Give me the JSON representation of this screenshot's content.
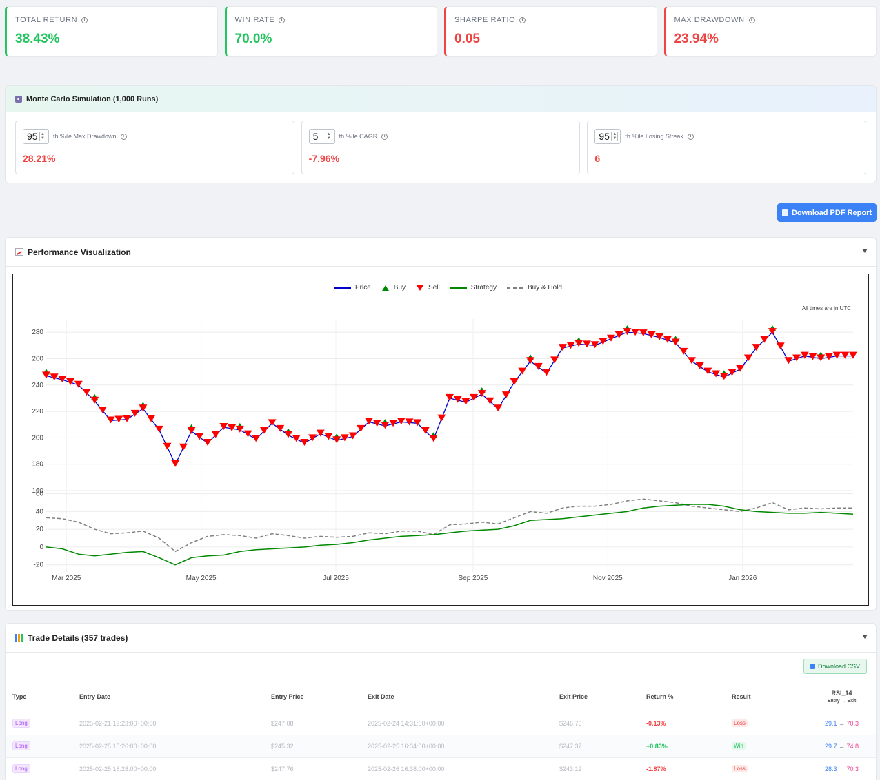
{
  "kpis": [
    {
      "label": "TOTAL RETURN",
      "value": "38.43%",
      "tone": "green"
    },
    {
      "label": "WIN RATE",
      "value": "70.0%",
      "tone": "green"
    },
    {
      "label": "SHARPE RATIO",
      "value": "0.05",
      "tone": "red"
    },
    {
      "label": "MAX DRAWDOWN",
      "value": "23.94%",
      "tone": "red"
    }
  ],
  "monte_carlo": {
    "title": "Monte Carlo Simulation (1,000 Runs)",
    "cards": [
      {
        "percentile": "95",
        "label": "th %ile Max Drawdown",
        "value": "28.21%"
      },
      {
        "percentile": "5",
        "label": "th %ile CAGR",
        "value": "-7.96%"
      },
      {
        "percentile": "95",
        "label": "th %ile Losing Streak",
        "value": "6"
      }
    ]
  },
  "download_pdf_label": "Download PDF Report",
  "performance": {
    "title": "Performance Visualization",
    "utc_note": "All times are in UTC",
    "legend": [
      "Price",
      "Buy",
      "Sell",
      "Strategy",
      "Buy & Hold"
    ]
  },
  "chart_data": {
    "type": "line",
    "x_ticks": [
      "Mar 2025",
      "May 2025",
      "Jul 2025",
      "Sep 2025",
      "Nov 2025",
      "Jan 2026"
    ],
    "price_axis": {
      "ticks": [
        160,
        180,
        200,
        220,
        240,
        260,
        280
      ],
      "ylim": [
        160,
        290
      ]
    },
    "equity_axis": {
      "ticks": [
        -20,
        0,
        20,
        40,
        60
      ],
      "ylim": [
        -28,
        62
      ]
    },
    "colors": {
      "price": "#0000cc",
      "buy": "#008800",
      "sell": "#ff0000",
      "strategy": "#008800",
      "buy_hold": "#808080"
    },
    "series": [
      {
        "name": "Price",
        "x": [
          0,
          2,
          4,
          6,
          8,
          10,
          12,
          14,
          16,
          18,
          20,
          22,
          24,
          26,
          28,
          30,
          32,
          34,
          36,
          38,
          40,
          42,
          44,
          46,
          48,
          50,
          52,
          54,
          56,
          58,
          60,
          62,
          64,
          66,
          68,
          70,
          72,
          74,
          76,
          78,
          80,
          82,
          84,
          86,
          88,
          90,
          92,
          94,
          96,
          98,
          100
        ],
        "values": [
          247,
          244,
          240,
          228,
          213,
          214,
          222,
          206,
          180,
          205,
          196,
          208,
          206,
          199,
          211,
          202,
          196,
          203,
          198,
          201,
          212,
          209,
          212,
          211,
          199,
          230,
          227,
          233,
          222,
          242,
          258,
          249,
          268,
          271,
          270,
          275,
          280,
          279,
          276,
          272,
          258,
          250,
          246,
          252,
          268,
          280,
          258,
          262,
          260,
          262,
          262
        ]
      },
      {
        "name": "Strategy",
        "x": [
          0,
          2,
          4,
          6,
          8,
          10,
          12,
          14,
          16,
          18,
          20,
          22,
          24,
          26,
          28,
          30,
          32,
          34,
          36,
          38,
          40,
          42,
          44,
          46,
          48,
          50,
          52,
          54,
          56,
          58,
          60,
          62,
          64,
          66,
          68,
          70,
          72,
          74,
          76,
          78,
          80,
          82,
          84,
          86,
          88,
          90,
          92,
          94,
          96,
          98,
          100
        ],
        "values": [
          0,
          -2,
          -8,
          -10,
          -8,
          -6,
          -5,
          -12,
          -20,
          -12,
          -10,
          -9,
          -5,
          -3,
          -2,
          -1,
          0,
          2,
          3,
          5,
          8,
          10,
          12,
          13,
          14,
          16,
          18,
          19,
          20,
          24,
          30,
          31,
          32,
          34,
          36,
          38,
          40,
          44,
          46,
          47,
          48,
          48,
          46,
          42,
          40,
          39,
          38,
          38,
          39,
          38,
          37
        ]
      },
      {
        "name": "Buy & Hold",
        "x": [
          0,
          2,
          4,
          6,
          8,
          10,
          12,
          14,
          16,
          18,
          20,
          22,
          24,
          26,
          28,
          30,
          32,
          34,
          36,
          38,
          40,
          42,
          44,
          46,
          48,
          50,
          52,
          54,
          56,
          58,
          60,
          62,
          64,
          66,
          68,
          70,
          72,
          74,
          76,
          78,
          80,
          82,
          84,
          86,
          88,
          90,
          92,
          94,
          96,
          98,
          100
        ],
        "values": [
          33,
          32,
          28,
          20,
          15,
          16,
          18,
          10,
          -5,
          5,
          12,
          14,
          13,
          10,
          15,
          13,
          10,
          12,
          11,
          12,
          16,
          15,
          18,
          18,
          14,
          25,
          26,
          28,
          26,
          33,
          40,
          38,
          44,
          46,
          46,
          48,
          52,
          54,
          52,
          50,
          46,
          44,
          42,
          40,
          44,
          50,
          42,
          44,
          43,
          44,
          44
        ]
      }
    ]
  },
  "trades": {
    "title": "Trade Details (357 trades)",
    "download_csv_label": "Download CSV",
    "columns": [
      "Type",
      "Entry Date",
      "Entry Price",
      "Exit Date",
      "Exit Price",
      "Return %",
      "Result",
      "RSI_14"
    ],
    "rsi_sub": "Entry → Exit",
    "rows": [
      {
        "type": "Long",
        "entry_date": "2025-02-21 19:23:00+00:00",
        "entry_price": "$247.08",
        "exit_date": "2025-02-24 14:31:00+00:00",
        "exit_price": "$246.76",
        "ret": "-0.13%",
        "result": "Loss",
        "rsi_in": "29.1",
        "rsi_out": "70.3"
      },
      {
        "type": "Long",
        "entry_date": "2025-02-25 15:26:00+00:00",
        "entry_price": "$245.32",
        "exit_date": "2025-02-25 16:34:00+00:00",
        "exit_price": "$247.37",
        "ret": "+0.83%",
        "result": "Win",
        "rsi_in": "29.7",
        "rsi_out": "74.8"
      },
      {
        "type": "Long",
        "entry_date": "2025-02-25 18:28:00+00:00",
        "entry_price": "$247.76",
        "exit_date": "2025-02-26 16:38:00+00:00",
        "exit_price": "$243.12",
        "ret": "-1.87%",
        "result": "Loss",
        "rsi_in": "28.3",
        "rsi_out": "70.3"
      }
    ]
  }
}
